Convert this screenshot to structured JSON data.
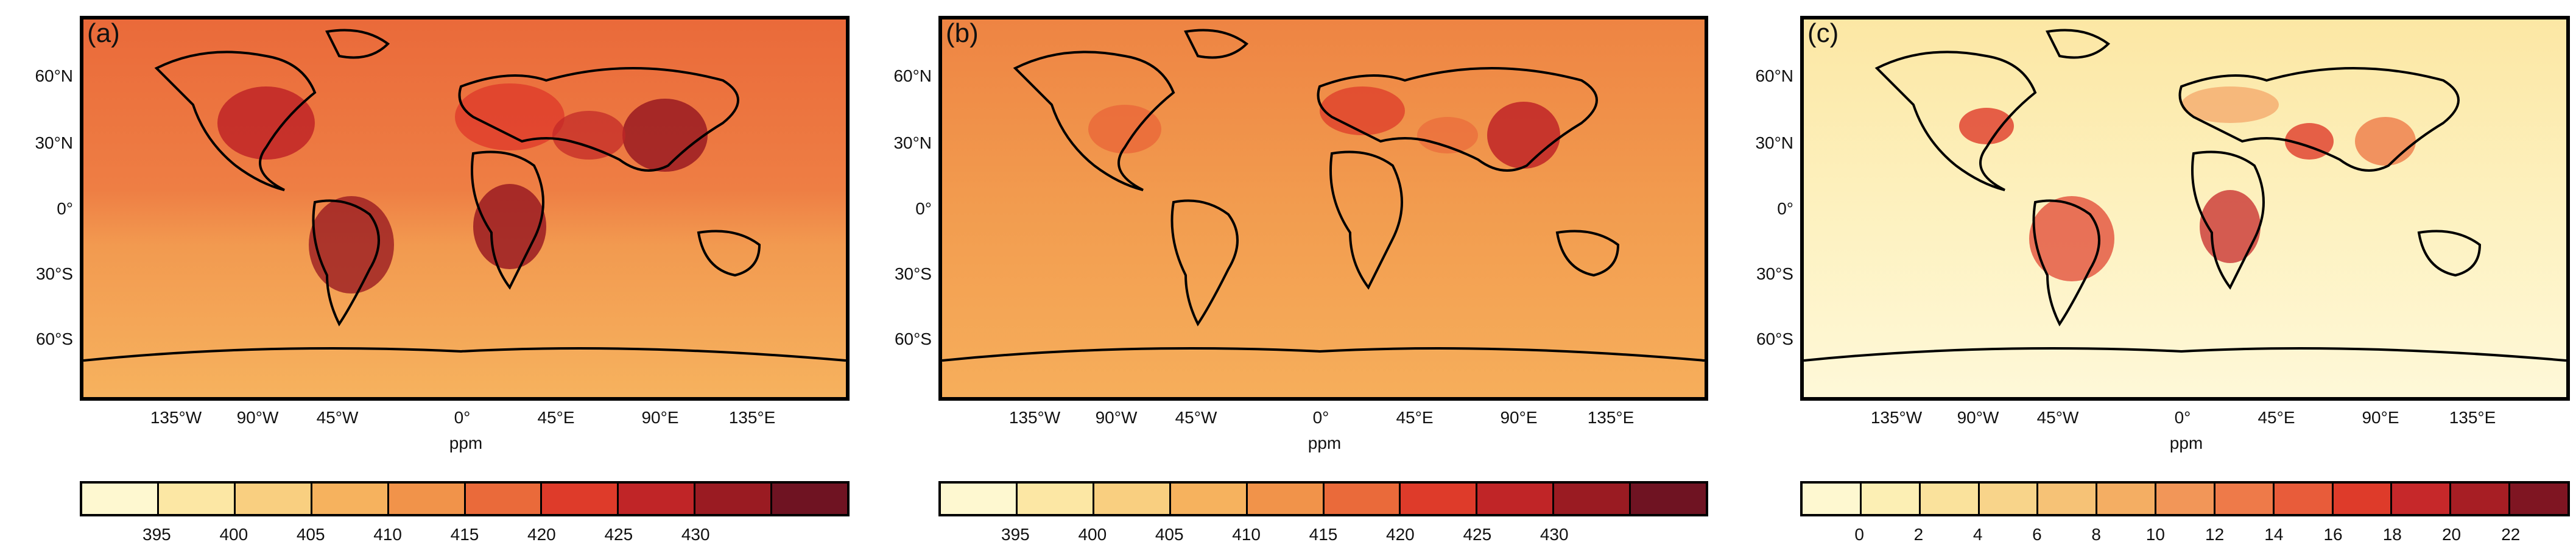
{
  "panels": [
    {
      "label": "(a)",
      "unit": "ppm",
      "colorbar_labels": [
        "395",
        "400",
        "405",
        "410",
        "415",
        "420",
        "425",
        "430"
      ],
      "colorbar_colors": [
        "#fef8d0",
        "#fce7a4",
        "#f9cf80",
        "#f6b25e",
        "#f1934a",
        "#ea6a3a",
        "#de3b2a",
        "#c02527",
        "#9a1b22",
        "#6f1322"
      ],
      "background": "#ea6a3a",
      "gradient": [
        "#ea6a3a",
        "#f1934a",
        "#f6b25e"
      ]
    },
    {
      "label": "(b)",
      "unit": "ppm",
      "colorbar_labels": [
        "395",
        "400",
        "405",
        "410",
        "415",
        "420",
        "425",
        "430"
      ],
      "colorbar_colors": [
        "#fef8d0",
        "#fce7a4",
        "#f9cf80",
        "#f6b25e",
        "#f1934a",
        "#ea6a3a",
        "#de3b2a",
        "#c02527",
        "#9a1b22",
        "#6f1322"
      ],
      "background": "#f1934a",
      "gradient": [
        "#ee8443",
        "#f29c4f",
        "#f6ae5b"
      ]
    },
    {
      "label": "(c)",
      "unit": "ppm",
      "colorbar_labels": [
        "0",
        "2",
        "4",
        "6",
        "8",
        "10",
        "12",
        "14",
        "16",
        "18",
        "20",
        "22"
      ],
      "colorbar_colors": [
        "#fef8d0",
        "#fcefb4",
        "#fae29c",
        "#f8d48a",
        "#f6c276",
        "#f4ae63",
        "#f29658",
        "#ee7a49",
        "#e85c3a",
        "#de3b2a",
        "#c6282a",
        "#a71e24",
        "#7f1522"
      ],
      "background": "#fdf1bf",
      "gradient": [
        "#fde8ab",
        "#fdf3c5",
        "#fef8d8"
      ]
    }
  ],
  "lat_ticks": [
    "60°N",
    "30°N",
    "0°",
    "30°S",
    "60°S"
  ],
  "lon_ticks": [
    "135°W",
    "90°W",
    "45°W",
    "0°",
    "45°E",
    "90°E",
    "135°E"
  ]
}
